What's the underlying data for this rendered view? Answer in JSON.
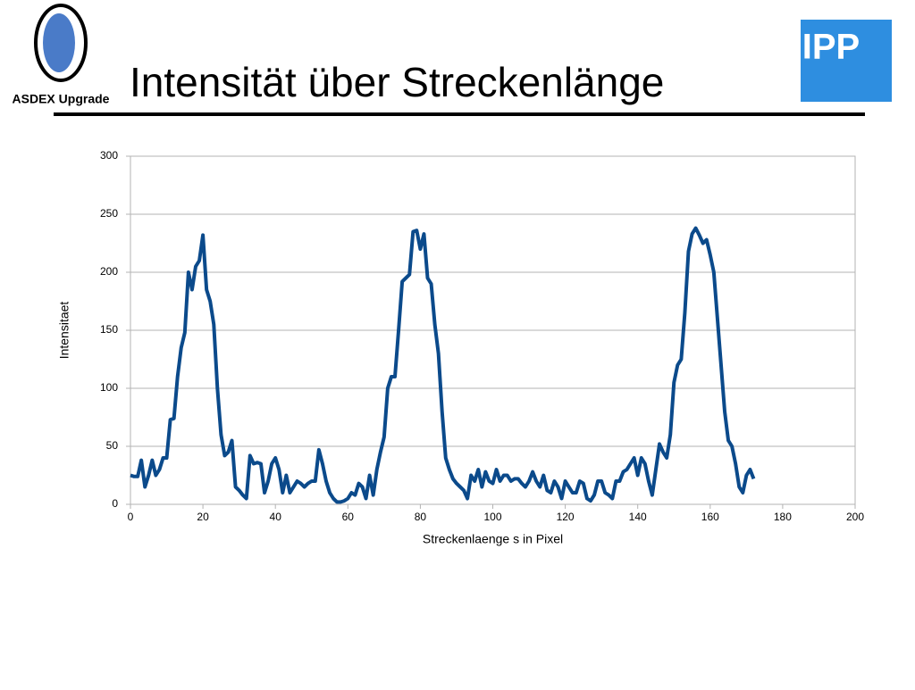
{
  "header": {
    "title": "Intensität über Streckenlänge",
    "left_logo": "ASDEX Upgrade",
    "right_logo": "IPP"
  },
  "chart_data": {
    "type": "line",
    "x_label": "Streckenlaenge s in Pixel",
    "y_label": "Intensitaet",
    "xlim": [
      0,
      200
    ],
    "xticks": [
      0,
      20,
      40,
      60,
      80,
      100,
      120,
      140,
      160,
      180,
      200
    ],
    "ylim": [
      0,
      300
    ],
    "yticks": [
      0,
      50,
      100,
      150,
      200,
      250,
      300
    ],
    "grid": true,
    "x": [
      0,
      1,
      2,
      3,
      4,
      5,
      6,
      7,
      8,
      9,
      10,
      11,
      12,
      13,
      14,
      15,
      16,
      17,
      18,
      19,
      20,
      21,
      22,
      23,
      24,
      25,
      26,
      27,
      28,
      29,
      30,
      31,
      32,
      33,
      34,
      35,
      36,
      37,
      38,
      39,
      40,
      41,
      42,
      43,
      44,
      45,
      46,
      47,
      48,
      49,
      50,
      51,
      52,
      53,
      54,
      55,
      56,
      57,
      58,
      59,
      60,
      61,
      62,
      63,
      64,
      65,
      66,
      67,
      68,
      69,
      70,
      71,
      72,
      73,
      74,
      75,
      76,
      77,
      78,
      79,
      80,
      81,
      82,
      83,
      84,
      85,
      86,
      87,
      88,
      89,
      90,
      91,
      92,
      93,
      94,
      95,
      96,
      97,
      98,
      99,
      100,
      101,
      102,
      103,
      104,
      105,
      106,
      107,
      108,
      109,
      110,
      111,
      112,
      113,
      114,
      115,
      116,
      117,
      118,
      119,
      120,
      121,
      122,
      123,
      124,
      125,
      126,
      127,
      128,
      129,
      130,
      131,
      132,
      133,
      134,
      135,
      136,
      137,
      138,
      139,
      140,
      141,
      142,
      143,
      144,
      145,
      146,
      147,
      148,
      149,
      150,
      151,
      152,
      153,
      154,
      155,
      156,
      157,
      158,
      159,
      160,
      161,
      162,
      163,
      164,
      165,
      166,
      167,
      168,
      169,
      170,
      171,
      172
    ],
    "series": [
      {
        "name": "Intensitaet",
        "color": "#0b4a8b",
        "values": [
          25,
          24,
          24,
          38,
          15,
          25,
          38,
          25,
          30,
          40,
          40,
          73,
          74,
          110,
          135,
          148,
          200,
          185,
          205,
          210,
          232,
          185,
          175,
          155,
          100,
          60,
          42,
          45,
          55,
          15,
          12,
          8,
          5,
          42,
          35,
          36,
          35,
          10,
          20,
          35,
          40,
          30,
          10,
          25,
          10,
          15,
          20,
          18,
          15,
          18,
          20,
          20,
          47,
          35,
          20,
          10,
          5,
          2,
          2,
          3,
          5,
          10,
          8,
          18,
          15,
          5,
          25,
          8,
          30,
          45,
          58,
          100,
          110,
          110,
          150,
          192,
          195,
          198,
          235,
          236,
          220,
          233,
          195,
          190,
          155,
          130,
          80,
          40,
          30,
          22,
          18,
          15,
          12,
          5,
          25,
          20,
          30,
          15,
          28,
          20,
          18,
          30,
          20,
          25,
          25,
          20,
          22,
          22,
          18,
          15,
          20,
          28,
          20,
          15,
          25,
          12,
          10,
          20,
          15,
          5,
          20,
          15,
          10,
          10,
          20,
          18,
          5,
          3,
          8,
          20,
          20,
          10,
          8,
          5,
          20,
          20,
          28,
          30,
          35,
          40,
          25,
          40,
          35,
          20,
          8,
          30,
          52,
          45,
          40,
          60,
          105,
          120,
          125,
          165,
          218,
          233,
          238,
          232,
          225,
          228,
          215,
          200,
          160,
          120,
          80,
          55,
          50,
          35,
          15,
          10,
          25,
          30,
          22
        ]
      }
    ]
  }
}
